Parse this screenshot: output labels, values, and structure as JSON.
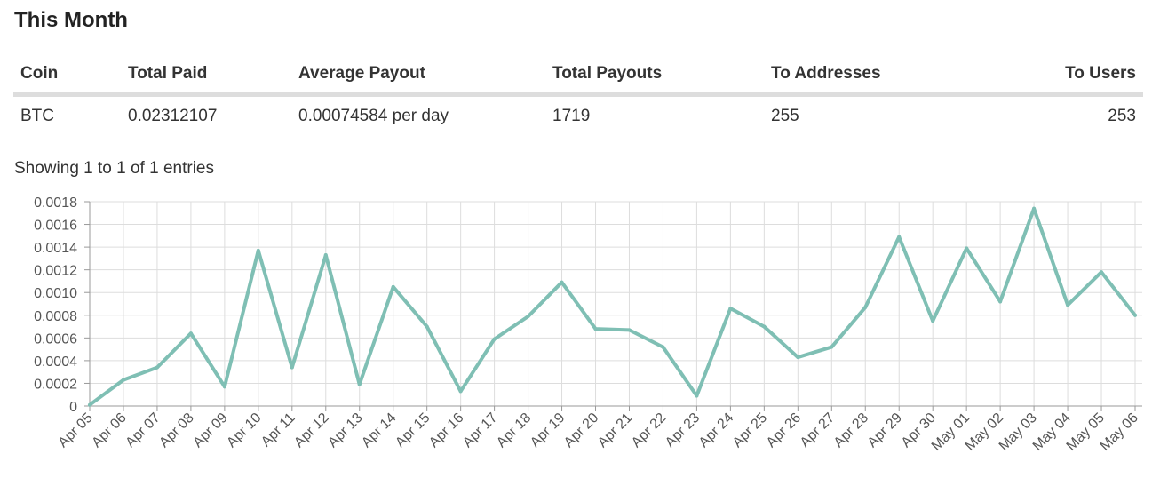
{
  "section": {
    "title": "This Month"
  },
  "table": {
    "headers": {
      "coin": "Coin",
      "total_paid": "Total Paid",
      "average_payout": "Average Payout",
      "total_payouts": "Total Payouts",
      "to_addresses": "To Addresses",
      "to_users": "To Users"
    },
    "rows": [
      {
        "coin": "BTC",
        "total_paid": "0.02312107",
        "average_payout": "0.00074584 per day",
        "total_payouts": "1719",
        "to_addresses": "255",
        "to_users": "253"
      }
    ],
    "info": "Showing 1 to 1 of 1 entries"
  },
  "chart_data": {
    "type": "line",
    "title": "",
    "xlabel": "",
    "ylabel": "",
    "ylim": [
      0,
      0.0018
    ],
    "yticks": [
      "0",
      "0.0002",
      "0.0004",
      "0.0006",
      "0.0008",
      "0.0010",
      "0.0012",
      "0.0014",
      "0.0016",
      "0.0018"
    ],
    "grid": true,
    "line_color": "#7fbfb4",
    "grid_color": "#dddddd",
    "axis_color": "#999999",
    "categories": [
      "Apr 05",
      "Apr 06",
      "Apr 07",
      "Apr 08",
      "Apr 09",
      "Apr 10",
      "Apr 11",
      "Apr 12",
      "Apr 13",
      "Apr 14",
      "Apr 15",
      "Apr 16",
      "Apr 17",
      "Apr 18",
      "Apr 19",
      "Apr 20",
      "Apr 21",
      "Apr 22",
      "Apr 23",
      "Apr 24",
      "Apr 25",
      "Apr 26",
      "Apr 27",
      "Apr 28",
      "Apr 29",
      "Apr 30",
      "May 01",
      "May 02",
      "May 03",
      "May 04",
      "May 05",
      "May 06"
    ],
    "series": [
      {
        "values": [
          1e-05,
          0.00023,
          0.00034,
          0.00064,
          0.00017,
          0.00137,
          0.00034,
          0.00133,
          0.00019,
          0.00105,
          0.0007,
          0.00013,
          0.00059,
          0.00079,
          0.00109,
          0.00068,
          0.00067,
          0.00052,
          9e-05,
          0.00086,
          0.0007,
          0.00043,
          0.00052,
          0.00087,
          0.00149,
          0.00075,
          0.00139,
          0.00092,
          0.00174,
          0.00089,
          0.00118,
          0.0008
        ]
      }
    ]
  }
}
